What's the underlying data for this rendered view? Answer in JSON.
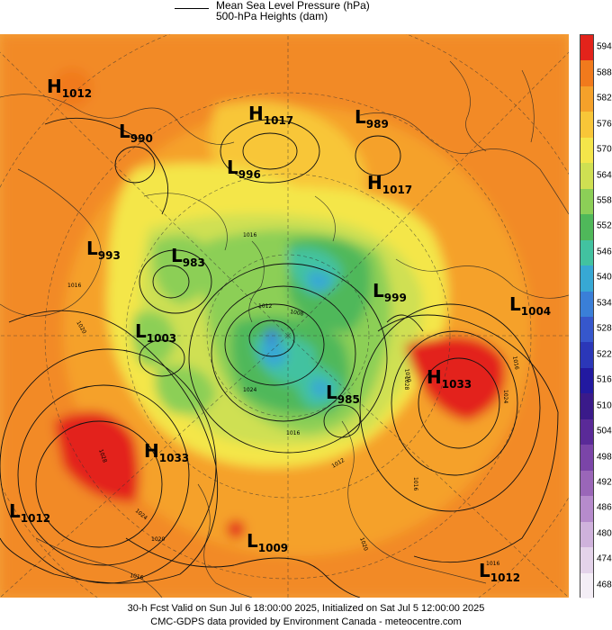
{
  "header": {
    "mslp_label": "Mean Sea Level Pressure (hPa)",
    "heights_label": "500-hPa Heights (dam)"
  },
  "colorbar": {
    "labels": [
      "594",
      "588",
      "582",
      "576",
      "570",
      "564",
      "558",
      "552",
      "546",
      "540",
      "534",
      "528",
      "522",
      "516",
      "510",
      "504",
      "498",
      "492",
      "486",
      "480",
      "474",
      "468"
    ],
    "colors": [
      "#e3231b",
      "#f17a1c",
      "#f5a12a",
      "#f8c638",
      "#f4e64a",
      "#cfe052",
      "#8ccf57",
      "#4fb85a",
      "#42c2a0",
      "#37a8d4",
      "#3a7fd8",
      "#3657cc",
      "#2b37b8",
      "#2219a0",
      "#3a1a8a",
      "#5a2a98",
      "#7b45a8",
      "#9a66b8",
      "#b68bcc",
      "#cfb2dc",
      "#e4d3ea",
      "#f4eef6"
    ]
  },
  "pressure_systems": [
    {
      "type": "H",
      "value": "1012"
    },
    {
      "type": "L",
      "value": "990"
    },
    {
      "type": "H",
      "value": "1017"
    },
    {
      "type": "L",
      "value": "989"
    },
    {
      "type": "L",
      "value": "996"
    },
    {
      "type": "H",
      "value": "1017"
    },
    {
      "type": "L",
      "value": "993"
    },
    {
      "type": "L",
      "value": "983"
    },
    {
      "type": "L",
      "value": "999"
    },
    {
      "type": "L",
      "value": "1004"
    },
    {
      "type": "L",
      "value": "1003"
    },
    {
      "type": "H",
      "value": "1033"
    },
    {
      "type": "L",
      "value": "985"
    },
    {
      "type": "H",
      "value": "1033"
    },
    {
      "type": "L",
      "value": "1012"
    },
    {
      "type": "L",
      "value": "1009"
    },
    {
      "type": "L",
      "value": "1012"
    }
  ],
  "isobar_labels": [
    "1016",
    "1020",
    "1012",
    "1008",
    "1016",
    "1024",
    "1020",
    "1016",
    "1012",
    "1028",
    "1024",
    "1020",
    "1016",
    "1028",
    "1024",
    "1020",
    "1016",
    "1016",
    "1016"
  ],
  "footer": {
    "line1": "30-h Fcst Valid on Sun Jul  6 18:00:00 2025, Initialized on Sat Jul  5 12:00:00 2025",
    "line2": "CMC-GDPS data provided by Environment Canada - meteocentre.com"
  }
}
